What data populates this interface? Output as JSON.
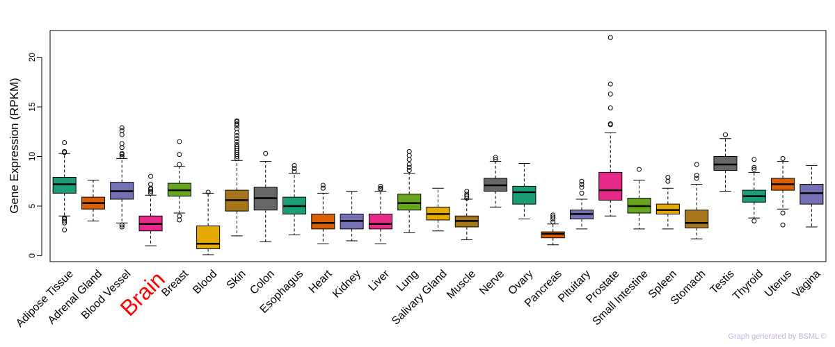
{
  "chart_data": {
    "type": "boxplot",
    "title": "",
    "xlabel": "",
    "ylabel": "Gene Expression (RPKM)",
    "ylim": [
      -0.6,
      22.7
    ],
    "yticks": [
      0,
      5,
      10,
      15,
      20
    ],
    "grid": false,
    "legend": "none",
    "highlight_category": "Brain",
    "highlight_color": "#ff0000",
    "categories": [
      "Adipose Tissue",
      "Adrenal Gland",
      "Blood Vessel",
      "Brain",
      "Breast",
      "Blood",
      "Skin",
      "Colon",
      "Esophagus",
      "Heart",
      "Kidney",
      "Liver",
      "Lung",
      "Salivary Gland",
      "Muscle",
      "Nerve",
      "Ovary",
      "Pancreas",
      "Pituitary",
      "Prostate",
      "Small Intestine",
      "Spleen",
      "Stomach",
      "Testis",
      "Thyroid",
      "Uterus",
      "Vagina"
    ],
    "colors": [
      "#1b9e77",
      "#d95f02",
      "#7570b3",
      "#e7298a",
      "#66a61e",
      "#e6ab02",
      "#a6761d",
      "#666666",
      "#1b9e77",
      "#d95f02",
      "#7570b3",
      "#e7298a",
      "#66a61e",
      "#e6ab02",
      "#a6761d",
      "#666666",
      "#1b9e77",
      "#d95f02",
      "#7570b3",
      "#e7298a",
      "#66a61e",
      "#e6ab02",
      "#a6761d",
      "#666666",
      "#1b9e77",
      "#d95f02",
      "#7570b3"
    ],
    "boxes": [
      {
        "min": 4.0,
        "q1": 6.3,
        "median": 7.2,
        "q3": 7.9,
        "max": 10.3,
        "outliers": [
          2.6,
          3.3,
          3.5,
          3.7,
          3.8,
          10.4,
          10.5,
          11.4
        ]
      },
      {
        "min": 3.5,
        "q1": 4.7,
        "median": 5.3,
        "q3": 5.9,
        "max": 7.6,
        "outliers": []
      },
      {
        "min": 3.3,
        "q1": 5.7,
        "median": 6.5,
        "q3": 7.4,
        "max": 9.8,
        "outliers": [
          2.9,
          3.1,
          10.0,
          10.2,
          10.3,
          10.9,
          11.3,
          12.2,
          12.6,
          12.9
        ]
      },
      {
        "min": 1.0,
        "q1": 2.5,
        "median": 3.2,
        "q3": 4.0,
        "max": 6.1,
        "outliers": [
          6.3,
          6.5,
          6.7,
          6.8,
          7.2,
          8.0
        ]
      },
      {
        "min": 4.3,
        "q1": 6.0,
        "median": 6.6,
        "q3": 7.3,
        "max": 9.0,
        "outliers": [
          3.6,
          4.0,
          9.2,
          10.2,
          11.5
        ]
      },
      {
        "min": 0.1,
        "q1": 0.7,
        "median": 1.2,
        "q3": 3.0,
        "max": 6.3,
        "outliers": [
          6.4
        ]
      },
      {
        "min": 2.0,
        "q1": 4.5,
        "median": 5.6,
        "q3": 6.6,
        "max": 9.6,
        "outliers": [
          9.8,
          10.0,
          10.2,
          10.4,
          10.6,
          10.8,
          11.0,
          11.2,
          11.5,
          11.8,
          12.1,
          12.4,
          12.8,
          13.1,
          13.3,
          13.5,
          13.6
        ]
      },
      {
        "min": 1.4,
        "q1": 4.6,
        "median": 5.8,
        "q3": 6.9,
        "max": 9.5,
        "outliers": [
          10.3
        ]
      },
      {
        "min": 2.1,
        "q1": 4.2,
        "median": 5.0,
        "q3": 5.9,
        "max": 8.3,
        "outliers": [
          8.5,
          8.8,
          9.1
        ]
      },
      {
        "min": 1.2,
        "q1": 2.7,
        "median": 3.3,
        "q3": 4.2,
        "max": 6.3,
        "outliers": [
          6.8,
          7.1
        ]
      },
      {
        "min": 1.5,
        "q1": 2.7,
        "median": 3.5,
        "q3": 4.2,
        "max": 6.5,
        "outliers": []
      },
      {
        "min": 1.2,
        "q1": 2.7,
        "median": 3.2,
        "q3": 4.2,
        "max": 6.5,
        "outliers": [
          6.7,
          6.8,
          7.0
        ]
      },
      {
        "min": 2.3,
        "q1": 4.6,
        "median": 5.3,
        "q3": 6.2,
        "max": 8.3,
        "outliers": [
          8.6,
          8.9,
          9.2,
          9.7,
          10.1,
          10.5
        ]
      },
      {
        "min": 2.5,
        "q1": 3.6,
        "median": 4.2,
        "q3": 4.9,
        "max": 6.8,
        "outliers": []
      },
      {
        "min": 1.6,
        "q1": 2.9,
        "median": 3.5,
        "q3": 4.0,
        "max": 5.7,
        "outliers": [
          5.8,
          6.0,
          6.2,
          6.5
        ]
      },
      {
        "min": 4.9,
        "q1": 6.5,
        "median": 7.1,
        "q3": 7.8,
        "max": 9.5,
        "outliers": [
          9.7,
          9.9
        ]
      },
      {
        "min": 3.7,
        "q1": 5.2,
        "median": 6.4,
        "q3": 7.0,
        "max": 9.3,
        "outliers": []
      },
      {
        "min": 1.1,
        "q1": 1.8,
        "median": 2.2,
        "q3": 2.4,
        "max": 3.2,
        "outliers": [
          3.4,
          3.7,
          3.9,
          4.1
        ]
      },
      {
        "min": 2.7,
        "q1": 3.7,
        "median": 4.2,
        "q3": 4.6,
        "max": 5.7,
        "outliers": [
          6.3,
          6.9,
          7.2,
          7.5
        ]
      },
      {
        "min": 4.0,
        "q1": 5.6,
        "median": 6.6,
        "q3": 8.4,
        "max": 12.4,
        "outliers": [
          13.2,
          13.3,
          14.9,
          16.3,
          17.3,
          22.0
        ]
      },
      {
        "min": 2.7,
        "q1": 4.3,
        "median": 5.0,
        "q3": 5.8,
        "max": 7.6,
        "outliers": [
          8.7
        ]
      },
      {
        "min": 2.7,
        "q1": 4.2,
        "median": 4.6,
        "q3": 5.2,
        "max": 6.8,
        "outliers": [
          7.5,
          7.9
        ]
      },
      {
        "min": 1.7,
        "q1": 2.8,
        "median": 3.3,
        "q3": 4.6,
        "max": 7.2,
        "outliers": [
          7.8,
          8.1,
          9.2
        ]
      },
      {
        "min": 6.5,
        "q1": 8.6,
        "median": 9.2,
        "q3": 10.0,
        "max": 11.8,
        "outliers": [
          12.2
        ]
      },
      {
        "min": 3.8,
        "q1": 5.4,
        "median": 6.0,
        "q3": 6.6,
        "max": 8.4,
        "outliers": [
          3.5,
          8.7,
          8.9,
          9.7
        ]
      },
      {
        "min": 4.7,
        "q1": 6.6,
        "median": 7.2,
        "q3": 7.8,
        "max": 9.5,
        "outliers": [
          3.1,
          4.3,
          9.8
        ]
      },
      {
        "min": 2.9,
        "q1": 5.2,
        "median": 6.3,
        "q3": 7.2,
        "max": 9.1,
        "outliers": []
      }
    ]
  },
  "footer": {
    "credit": "Graph generated by BSML ©"
  }
}
